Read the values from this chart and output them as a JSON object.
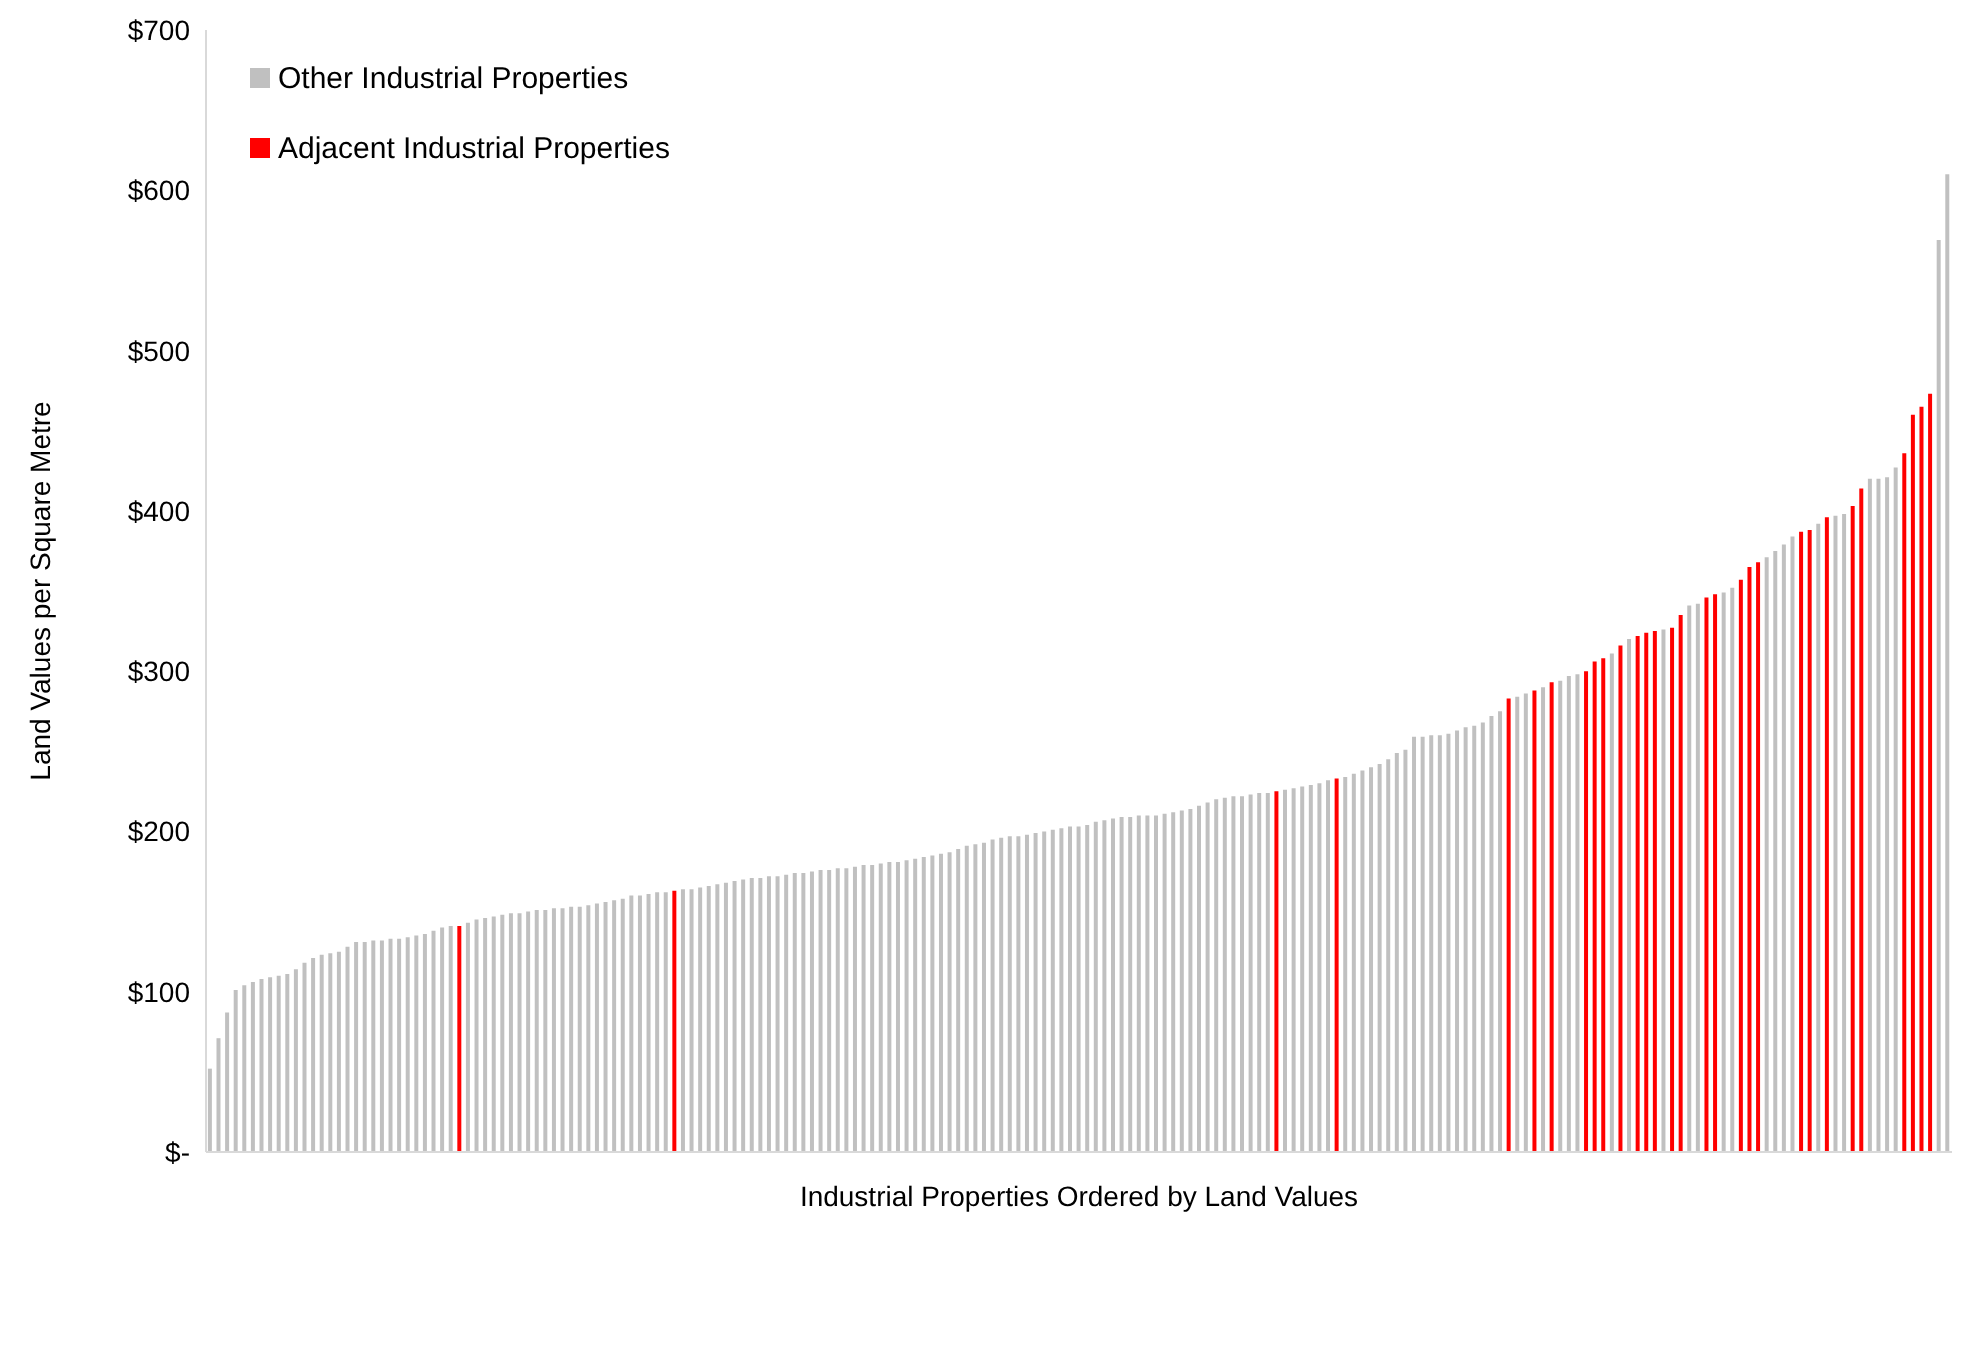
{
  "chart_data": {
    "type": "bar",
    "xlabel": "Industrial Properties Ordered by Land Values",
    "ylabel": "Land Values per Square Metre",
    "categories": [
      null,
      null,
      null,
      null,
      null,
      null,
      null,
      null,
      null,
      null,
      null,
      null,
      null,
      null,
      null,
      null,
      null,
      null,
      null,
      null,
      null,
      null,
      null,
      null,
      null,
      null,
      null,
      null,
      null,
      null,
      null,
      null,
      null,
      null,
      null,
      null,
      null,
      null,
      null,
      null,
      null,
      null,
      null,
      null,
      null,
      null,
      null,
      null,
      null,
      null,
      null,
      null,
      null,
      null,
      null,
      null,
      null,
      null,
      null,
      null,
      null,
      null,
      null,
      null,
      null,
      null,
      null,
      null,
      null,
      null,
      null,
      null,
      null,
      null,
      null,
      null,
      null,
      null,
      null,
      null,
      null,
      null,
      null,
      null,
      null,
      null,
      null,
      null,
      null,
      null,
      null,
      null,
      null,
      null,
      null,
      null,
      null,
      null,
      null,
      null,
      null,
      null,
      null,
      null,
      null,
      null,
      null,
      null,
      null,
      null,
      null,
      null,
      null,
      null,
      null,
      null,
      null,
      null,
      null,
      null,
      null,
      null,
      null,
      null,
      null,
      null,
      null,
      null,
      null,
      null,
      null,
      null,
      null,
      null,
      null,
      null,
      null,
      null,
      null,
      null,
      null,
      null,
      null,
      null,
      null,
      null,
      null,
      null,
      null,
      null,
      null,
      null,
      null,
      null,
      null,
      null,
      null,
      null,
      null,
      null,
      null,
      null,
      null,
      null,
      null,
      null,
      null,
      null,
      null,
      null,
      null,
      null,
      null,
      null,
      null,
      null,
      null,
      null,
      null,
      null,
      null,
      null,
      null,
      null,
      null,
      null,
      null,
      null,
      null,
      null,
      null,
      null,
      null,
      null,
      null,
      null,
      null,
      null,
      null,
      null,
      null,
      null,
      null
    ],
    "stacked": true,
    "series": [
      {
        "name": "Other Industrial Properties",
        "color": "#c0c0c0",
        "values": [
          52,
          71,
          87,
          101,
          104,
          106,
          108,
          109,
          110,
          111,
          114,
          118,
          121,
          123,
          124,
          125,
          128,
          131,
          131,
          132,
          132,
          133,
          133,
          134,
          135,
          136,
          138,
          140,
          141,
          null,
          143,
          145,
          146,
          147,
          148,
          149,
          149,
          150,
          151,
          151,
          152,
          152,
          153,
          153,
          154,
          155,
          156,
          157,
          158,
          160,
          160,
          161,
          162,
          162,
          null,
          164,
          164,
          165,
          166,
          167,
          168,
          169,
          170,
          171,
          171,
          172,
          172,
          173,
          174,
          174,
          175,
          176,
          176,
          177,
          177,
          178,
          179,
          179,
          180,
          181,
          181,
          182,
          183,
          184,
          185,
          186,
          187,
          189,
          191,
          192,
          193,
          195,
          196,
          197,
          197,
          198,
          199,
          200,
          201,
          202,
          203,
          203,
          204,
          206,
          207,
          208,
          209,
          209,
          210,
          210,
          210,
          211,
          212,
          213,
          214,
          216,
          218,
          220,
          221,
          222,
          222,
          223,
          224,
          224,
          null,
          226,
          227,
          228,
          229,
          230,
          232,
          null,
          234,
          236,
          238,
          240,
          242,
          245,
          249,
          251,
          259,
          259,
          260,
          260,
          261,
          263,
          265,
          266,
          268,
          272,
          275,
          null,
          284,
          286,
          null,
          290,
          null,
          294,
          297,
          298,
          null,
          null,
          null,
          311,
          null,
          320,
          null,
          null,
          null,
          326,
          null,
          null,
          341,
          342,
          null,
          null,
          349,
          352,
          null,
          null,
          null,
          371,
          375,
          379,
          384,
          null,
          null,
          392,
          null,
          397,
          398,
          null,
          null,
          420,
          420,
          421,
          427,
          null,
          null,
          null,
          null,
          569,
          610
        ]
      },
      {
        "name": "Adjacent Industrial Properties",
        "color": "#ff0000",
        "values": [
          null,
          null,
          null,
          null,
          null,
          null,
          null,
          null,
          null,
          null,
          null,
          null,
          null,
          null,
          null,
          null,
          null,
          null,
          null,
          null,
          null,
          null,
          null,
          null,
          null,
          null,
          null,
          null,
          null,
          141,
          null,
          null,
          null,
          null,
          null,
          null,
          null,
          null,
          null,
          null,
          null,
          null,
          null,
          null,
          null,
          null,
          null,
          null,
          null,
          null,
          null,
          null,
          null,
          null,
          163,
          null,
          null,
          null,
          null,
          null,
          null,
          null,
          null,
          null,
          null,
          null,
          null,
          null,
          null,
          null,
          null,
          null,
          null,
          null,
          null,
          null,
          null,
          null,
          null,
          null,
          null,
          null,
          null,
          null,
          null,
          null,
          null,
          null,
          null,
          null,
          null,
          null,
          null,
          null,
          null,
          null,
          null,
          null,
          null,
          null,
          null,
          null,
          null,
          null,
          null,
          null,
          null,
          null,
          null,
          null,
          null,
          null,
          null,
          null,
          null,
          null,
          null,
          null,
          null,
          null,
          null,
          null,
          null,
          null,
          225,
          null,
          null,
          null,
          null,
          null,
          null,
          233,
          null,
          null,
          null,
          null,
          null,
          null,
          null,
          null,
          null,
          null,
          null,
          null,
          null,
          null,
          null,
          null,
          null,
          null,
          null,
          283,
          null,
          null,
          288,
          null,
          293,
          null,
          null,
          null,
          300,
          306,
          308,
          null,
          316,
          null,
          322,
          324,
          325,
          null,
          327,
          335,
          null,
          null,
          346,
          348,
          null,
          null,
          357,
          365,
          368,
          null,
          null,
          null,
          null,
          387,
          388,
          null,
          396,
          null,
          null,
          403,
          414,
          null,
          null,
          null,
          null,
          436,
          460,
          465,
          473,
          null,
          null
        ]
      }
    ],
    "ylim": [
      0,
      700
    ],
    "yticks": [
      {
        "value": 0,
        "label": "$-"
      },
      {
        "value": 100,
        "label": "$100"
      },
      {
        "value": 200,
        "label": "$200"
      },
      {
        "value": 300,
        "label": "$300"
      },
      {
        "value": 400,
        "label": "$400"
      },
      {
        "value": 500,
        "label": "$500"
      },
      {
        "value": 600,
        "label": "$600"
      },
      {
        "value": 700,
        "label": "$700"
      }
    ],
    "grid": false,
    "legend": "top left"
  }
}
